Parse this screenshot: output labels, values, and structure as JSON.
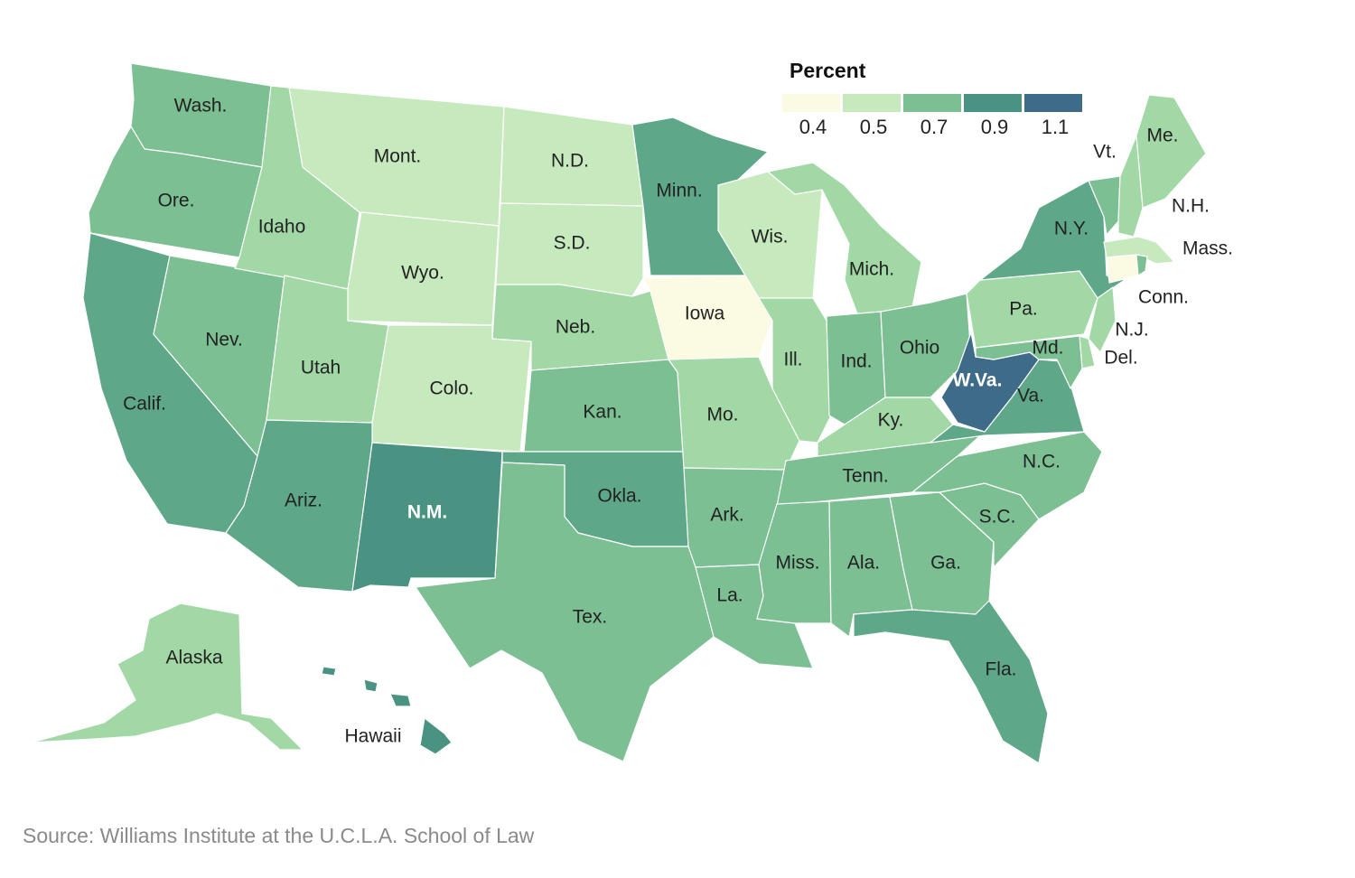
{
  "colors": {
    "c0.4": "#fbfbe3",
    "c0.5": "#c6e9bd",
    "c0.6": "#a2d8a5",
    "c0.7": "#7cbf93",
    "c0.8": "#5ea889",
    "c0.9": "#4a9383",
    "c1.1": "#3e6b87"
  },
  "legend": {
    "title": "Percent",
    "ticks": [
      "0.4",
      "0.5",
      "0.7",
      "0.9",
      "1.1"
    ],
    "bins": [
      "#fbfbe3",
      "#c6e9bd",
      "#7cbf93",
      "#4a9383",
      "#3e6b87"
    ]
  },
  "source": "Source: Williams Institute at the U.C.L.A. School of Law",
  "states": [
    {
      "id": "wa",
      "label": "Wash.",
      "value": 0.7
    },
    {
      "id": "or",
      "label": "Ore.",
      "value": 0.7
    },
    {
      "id": "ca",
      "label": "Calif.",
      "value": 0.8
    },
    {
      "id": "nv",
      "label": "Nev.",
      "value": 0.7
    },
    {
      "id": "id",
      "label": "Idaho",
      "value": 0.6
    },
    {
      "id": "mt",
      "label": "Mont.",
      "value": 0.5
    },
    {
      "id": "wy",
      "label": "Wyo.",
      "value": 0.5
    },
    {
      "id": "ut",
      "label": "Utah",
      "value": 0.6
    },
    {
      "id": "co",
      "label": "Colo.",
      "value": 0.5
    },
    {
      "id": "az",
      "label": "Ariz.",
      "value": 0.8
    },
    {
      "id": "nm",
      "label": "N.M.",
      "value": 0.9
    },
    {
      "id": "nd",
      "label": "N.D.",
      "value": 0.5
    },
    {
      "id": "sd",
      "label": "S.D.",
      "value": 0.5
    },
    {
      "id": "ne",
      "label": "Neb.",
      "value": 0.6
    },
    {
      "id": "ks",
      "label": "Kan.",
      "value": 0.7
    },
    {
      "id": "ok",
      "label": "Okla.",
      "value": 0.8
    },
    {
      "id": "tx",
      "label": "Tex.",
      "value": 0.7
    },
    {
      "id": "mn",
      "label": "Minn.",
      "value": 0.8
    },
    {
      "id": "ia",
      "label": "Iowa",
      "value": 0.4
    },
    {
      "id": "mo",
      "label": "Mo.",
      "value": 0.6
    },
    {
      "id": "ar",
      "label": "Ark.",
      "value": 0.7
    },
    {
      "id": "la",
      "label": "La.",
      "value": 0.7
    },
    {
      "id": "wi",
      "label": "Wis.",
      "value": 0.5
    },
    {
      "id": "mi",
      "label": "Mich.",
      "value": 0.6
    },
    {
      "id": "il",
      "label": "Ill.",
      "value": 0.6
    },
    {
      "id": "in",
      "label": "Ind.",
      "value": 0.7
    },
    {
      "id": "oh",
      "label": "Ohio",
      "value": 0.7
    },
    {
      "id": "ky",
      "label": "Ky.",
      "value": 0.6
    },
    {
      "id": "tn",
      "label": "Tenn.",
      "value": 0.7
    },
    {
      "id": "ms",
      "label": "Miss.",
      "value": 0.7
    },
    {
      "id": "al",
      "label": "Ala.",
      "value": 0.7
    },
    {
      "id": "ga",
      "label": "Ga.",
      "value": 0.7
    },
    {
      "id": "fl",
      "label": "Fla.",
      "value": 0.8
    },
    {
      "id": "sc",
      "label": "S.C.",
      "value": 0.7
    },
    {
      "id": "nc",
      "label": "N.C.",
      "value": 0.7
    },
    {
      "id": "va",
      "label": "Va.",
      "value": 0.8
    },
    {
      "id": "wv",
      "label": "W.Va.",
      "value": 1.1
    },
    {
      "id": "pa",
      "label": "Pa.",
      "value": 0.6
    },
    {
      "id": "ny",
      "label": "N.Y.",
      "value": 0.8
    },
    {
      "id": "vt",
      "label": "Vt.",
      "value": 0.7
    },
    {
      "id": "nh",
      "label": "N.H.",
      "value": 0.6
    },
    {
      "id": "me",
      "label": "Me.",
      "value": 0.6
    },
    {
      "id": "ma",
      "label": "Mass.",
      "value": 0.5
    },
    {
      "id": "ct",
      "label": "Conn.",
      "value": 0.4
    },
    {
      "id": "ri",
      "label": "",
      "value": 0.7
    },
    {
      "id": "nj",
      "label": "N.J.",
      "value": 0.6
    },
    {
      "id": "de",
      "label": "Del.",
      "value": 0.6
    },
    {
      "id": "md",
      "label": "Md.",
      "value": 0.7
    },
    {
      "id": "ak",
      "label": "Alaska",
      "value": 0.6
    },
    {
      "id": "hi",
      "label": "Hawaii",
      "value": 0.9
    }
  ]
}
